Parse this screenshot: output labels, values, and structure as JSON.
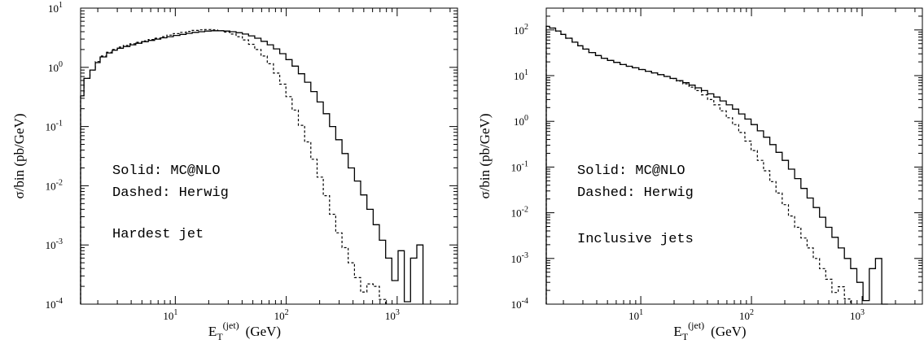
{
  "chart_data": [
    {
      "type": "line",
      "step": true,
      "log_x": true,
      "log_y": true,
      "xlim": [
        1.4,
        3500
      ],
      "ylim": [
        0.0001,
        10
      ],
      "grid": false,
      "xlabel": "E",
      "xlabel_sub": "T",
      "xlabel_sup": "(jet)",
      "xlabel_unit": "(GeV)",
      "ylabel": "σ/bin (pb/GeV)",
      "annotations": [
        "Solid: MC@NLO",
        "Dashed: Herwig",
        "Hardest jet"
      ],
      "series": [
        {
          "style": "solid",
          "edges": [
            1.4,
            1.5,
            1.7,
            1.9,
            2.1,
            2.4,
            2.7,
            3.0,
            3.4,
            3.9,
            4.4,
            5.0,
            5.7,
            6.5,
            7.4,
            8.4,
            9.6,
            11,
            12.5,
            14.2,
            16.2,
            18.4,
            21,
            24,
            27.3,
            31,
            35.3,
            40.2,
            45.7,
            52,
            59.2,
            67.4,
            76.7,
            87.3,
            99.3,
            113,
            128.6,
            146.4,
            166.6,
            189.6,
            215.8,
            245.6,
            279.5,
            318.1,
            362,
            412,
            468.9,
            533.7,
            607.4,
            691.3,
            786.8,
            895.4,
            1019.1,
            1159.8,
            1320,
            1502.3,
            1709.7
          ],
          "values": [
            0.33,
            0.65,
            0.9,
            1.2,
            1.5,
            1.75,
            1.95,
            2.1,
            2.25,
            2.4,
            2.55,
            2.7,
            2.85,
            3.0,
            3.15,
            3.3,
            3.45,
            3.6,
            3.75,
            3.9,
            4.0,
            4.1,
            4.15,
            4.15,
            4.1,
            4.0,
            3.85,
            3.65,
            3.4,
            3.1,
            2.75,
            2.4,
            2.05,
            1.7,
            1.35,
            1.05,
            0.78,
            0.56,
            0.39,
            0.26,
            0.165,
            0.1,
            0.06,
            0.035,
            0.02,
            0.012,
            0.007,
            0.004,
            0.0022,
            0.0012,
            0.0006,
            0.00025,
            0.0008,
            0.00011,
            0.0006,
            0.001
          ]
        },
        {
          "style": "dashed",
          "edges": [
            1.4,
            1.5,
            1.7,
            1.9,
            2.1,
            2.4,
            2.7,
            3.0,
            3.4,
            3.9,
            4.4,
            5.0,
            5.7,
            6.5,
            7.4,
            8.4,
            9.6,
            11,
            12.5,
            14.2,
            16.2,
            18.4,
            21,
            24,
            27.3,
            31,
            35.3,
            40.2,
            45.7,
            52,
            59.2,
            67.4,
            76.7,
            87.3,
            99.3,
            113,
            128.6,
            146.4,
            166.6,
            189.6,
            215.8,
            245.6,
            279.5,
            318.1,
            362,
            412,
            468.9,
            533.7,
            607.4,
            691.3,
            786.8
          ],
          "values": [
            0.33,
            0.65,
            0.9,
            1.25,
            1.55,
            1.8,
            2.0,
            2.2,
            2.35,
            2.5,
            2.65,
            2.8,
            2.95,
            3.1,
            3.3,
            3.5,
            3.7,
            3.9,
            4.05,
            4.2,
            4.3,
            4.35,
            4.3,
            4.15,
            3.95,
            3.65,
            3.3,
            2.9,
            2.45,
            2.0,
            1.55,
            1.15,
            0.8,
            0.52,
            0.32,
            0.19,
            0.105,
            0.055,
            0.028,
            0.014,
            0.0068,
            0.0033,
            0.0016,
            0.0009,
            0.0005,
            0.00028,
            0.00016,
            0.00022,
            0.0002,
            0.00012
          ]
        }
      ]
    },
    {
      "type": "line",
      "step": true,
      "log_x": true,
      "log_y": true,
      "xlim": [
        1.4,
        3500
      ],
      "ylim": [
        0.0001,
        300
      ],
      "grid": false,
      "xlabel": "E",
      "xlabel_sub": "T",
      "xlabel_sup": "(jet)",
      "xlabel_unit": "(GeV)",
      "ylabel": "σ/bin (pb/GeV)",
      "annotations": [
        "Solid: MC@NLO",
        "Dashed: Herwig",
        "Inclusive jets"
      ],
      "series": [
        {
          "style": "solid",
          "edges": [
            1.4,
            1.5,
            1.7,
            1.9,
            2.1,
            2.4,
            2.7,
            3.0,
            3.4,
            3.9,
            4.4,
            5.0,
            5.7,
            6.5,
            7.4,
            8.4,
            9.6,
            11,
            12.5,
            14.2,
            16.2,
            18.4,
            21,
            24,
            27.3,
            31,
            35.3,
            40.2,
            45.7,
            52,
            59.2,
            67.4,
            76.7,
            87.3,
            99.3,
            113,
            128.6,
            146.4,
            166.6,
            189.6,
            215.8,
            245.6,
            279.5,
            318.1,
            362,
            412,
            468.9,
            533.7,
            607.4,
            691.3,
            786.8,
            895.4,
            1019.1,
            1159.8,
            1320,
            1502.3,
            1709.7
          ],
          "values": [
            120,
            110,
            95,
            80,
            66,
            54,
            45,
            38,
            32,
            27.5,
            24,
            21.5,
            19.5,
            17.5,
            16,
            14.8,
            13.6,
            12.5,
            11.5,
            10.5,
            9.6,
            8.7,
            7.8,
            7.0,
            6.2,
            5.4,
            4.7,
            4.0,
            3.4,
            2.8,
            2.3,
            1.85,
            1.45,
            1.12,
            0.85,
            0.62,
            0.45,
            0.31,
            0.21,
            0.14,
            0.09,
            0.056,
            0.034,
            0.021,
            0.013,
            0.008,
            0.0048,
            0.0029,
            0.0017,
            0.001,
            0.0006,
            0.0003,
            0.00012,
            0.0006,
            0.001,
            0.0001
          ]
        },
        {
          "style": "dashed",
          "edges": [
            1.4,
            1.5,
            1.7,
            1.9,
            2.1,
            2.4,
            2.7,
            3.0,
            3.4,
            3.9,
            4.4,
            5.0,
            5.7,
            6.5,
            7.4,
            8.4,
            9.6,
            11,
            12.5,
            14.2,
            16.2,
            18.4,
            21,
            24,
            27.3,
            31,
            35.3,
            40.2,
            45.7,
            52,
            59.2,
            67.4,
            76.7,
            87.3,
            99.3,
            113,
            128.6,
            146.4,
            166.6,
            189.6,
            215.8,
            245.6,
            279.5,
            318.1,
            362,
            412,
            468.9,
            533.7,
            607.4,
            691.3,
            786.8
          ],
          "values": [
            120,
            110,
            95,
            80,
            66,
            54,
            45,
            38,
            32,
            27.5,
            24,
            21.5,
            19.5,
            17.5,
            16,
            14.8,
            13.6,
            12.5,
            11.5,
            10.5,
            9.6,
            8.6,
            7.6,
            6.6,
            5.6,
            4.7,
            3.8,
            3.0,
            2.3,
            1.7,
            1.2,
            0.85,
            0.57,
            0.37,
            0.23,
            0.14,
            0.083,
            0.048,
            0.027,
            0.015,
            0.0085,
            0.0048,
            0.0028,
            0.0017,
            0.001,
            0.0006,
            0.00035,
            0.00018,
            0.00024,
            0.00013
          ]
        }
      ]
    }
  ]
}
